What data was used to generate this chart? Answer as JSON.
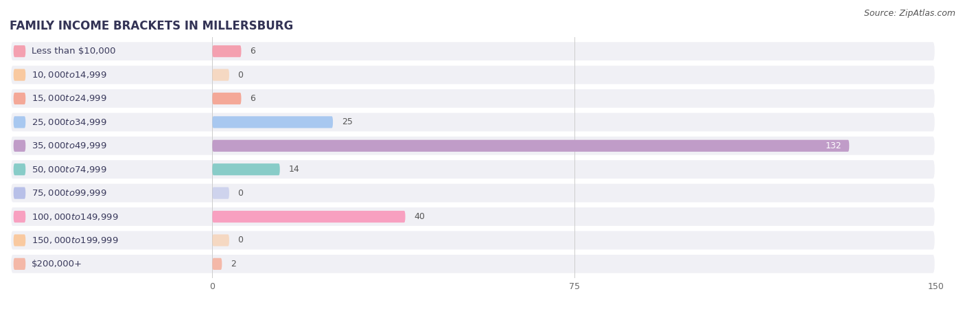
{
  "title": "FAMILY INCOME BRACKETS IN MILLERSBURG",
  "source": "Source: ZipAtlas.com",
  "categories": [
    "Less than $10,000",
    "$10,000 to $14,999",
    "$15,000 to $24,999",
    "$25,000 to $34,999",
    "$35,000 to $49,999",
    "$50,000 to $74,999",
    "$75,000 to $99,999",
    "$100,000 to $149,999",
    "$150,000 to $199,999",
    "$200,000+"
  ],
  "values": [
    6,
    0,
    6,
    25,
    132,
    14,
    0,
    40,
    0,
    2
  ],
  "bar_colors": [
    "#f4a0b0",
    "#f9c9a0",
    "#f4a898",
    "#a8c8f0",
    "#c09cc8",
    "#88ccc8",
    "#b8c0e8",
    "#f8a0c0",
    "#f9c9a0",
    "#f4b8a8"
  ],
  "bg_row_color": "#f0f0f5",
  "xlim": [
    0,
    150
  ],
  "xticks": [
    0,
    75,
    150
  ],
  "title_fontsize": 12,
  "label_fontsize": 9.5,
  "value_fontsize": 9,
  "source_fontsize": 9
}
